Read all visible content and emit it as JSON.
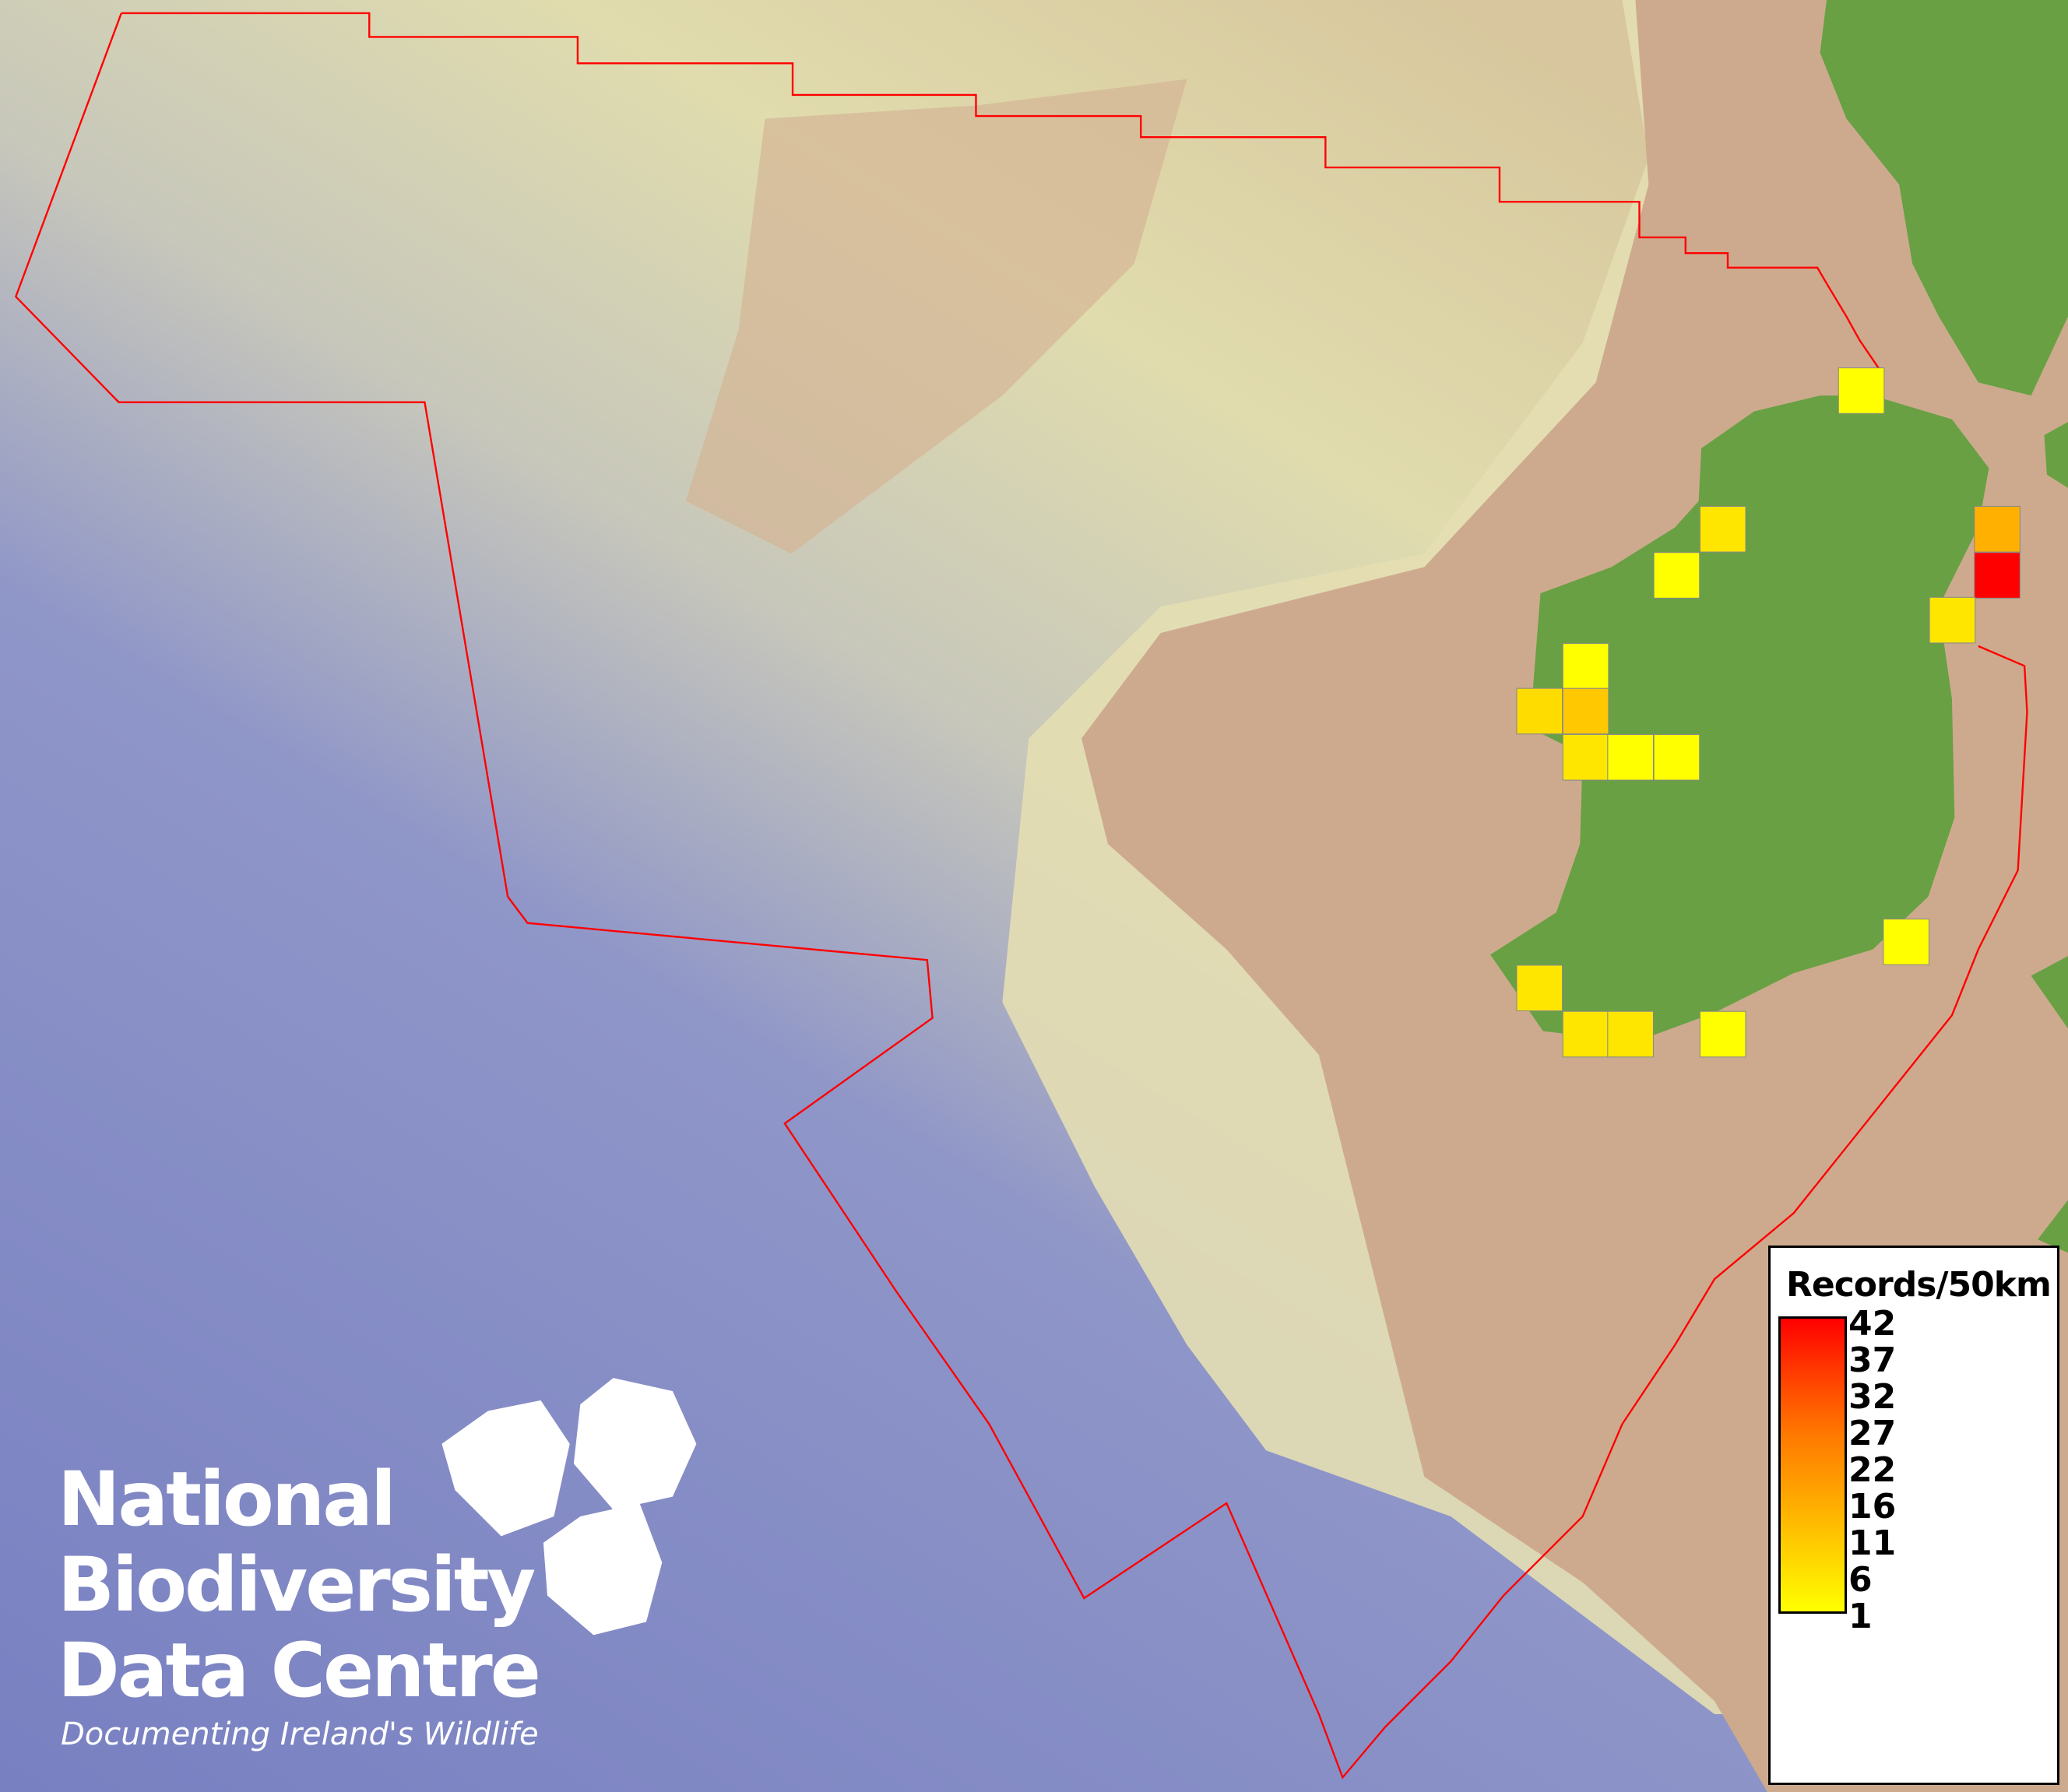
{
  "legend": {
    "title": "Records/50km",
    "ticks": [
      "42",
      "37",
      "32",
      "27",
      "22",
      "16",
      "11",
      "6",
      "1"
    ],
    "color_low": "#ffff00",
    "color_high": "#ff0000"
  },
  "cells": [
    {
      "value": 1,
      "color": "#ffff00"
    },
    {
      "value": 3,
      "color": "#ffe600"
    },
    {
      "value": 1,
      "color": "#ffff00"
    },
    {
      "value": 14,
      "color": "#ffb000"
    },
    {
      "value": 42,
      "color": "#ff0000"
    },
    {
      "value": 3,
      "color": "#ffe600"
    },
    {
      "value": 1,
      "color": "#ffff00"
    },
    {
      "value": 4,
      "color": "#ffdc00"
    },
    {
      "value": 8,
      "color": "#ffc800"
    },
    {
      "value": 3,
      "color": "#ffe600"
    },
    {
      "value": 1,
      "color": "#ffff00"
    },
    {
      "value": 1,
      "color": "#ffff00"
    },
    {
      "value": 1,
      "color": "#ffff00"
    },
    {
      "value": 3,
      "color": "#ffe600"
    },
    {
      "value": 3,
      "color": "#ffe600"
    },
    {
      "value": 3,
      "color": "#ffe600"
    },
    {
      "value": 1,
      "color": "#ffff00"
    }
  ],
  "logo": {
    "line1": "National",
    "line2": "Biodiversity",
    "line3": "Data Centre",
    "tagline": "Documenting Ireland's Wildlife"
  },
  "colors": {
    "boundary": "#ff0000",
    "land": "#68a043",
    "shelf": "#cdaa8e",
    "deep_sea": "#7c86c4"
  }
}
